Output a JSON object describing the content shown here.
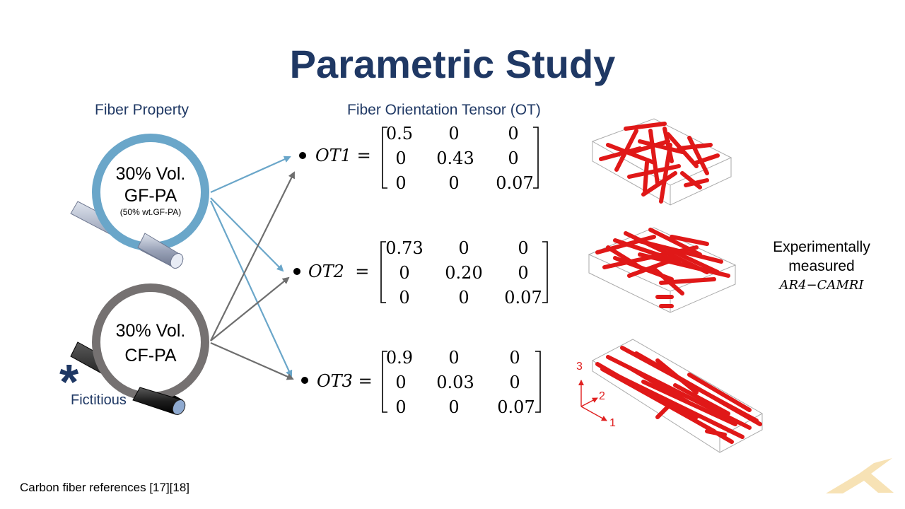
{
  "title": "Parametric Study",
  "fiber_header": "Fiber Property",
  "ot_header": "Fiber Orientation Tensor (OT)",
  "materials": [
    {
      "vol": "30% Vol.",
      "name": "GF-PA",
      "note": "(50% wt.GF-PA)"
    },
    {
      "vol": "30% Vol.",
      "name": "CF-PA",
      "note": ""
    }
  ],
  "fictitious": "Fictitious",
  "tensors": [
    {
      "label": "OT1",
      "rows": [
        [
          "0.5",
          "0",
          "0"
        ],
        [
          "0",
          "0.43",
          "0"
        ],
        [
          "0",
          "0",
          "0.07"
        ]
      ]
    },
    {
      "label": "OT2",
      "rows": [
        [
          "0.73",
          "0",
          "0"
        ],
        [
          "0",
          "0.20",
          "0"
        ],
        [
          "0",
          "0",
          "0.07"
        ]
      ]
    },
    {
      "label": "OT3",
      "rows": [
        [
          "0.9",
          "0",
          "0"
        ],
        [
          "0",
          "0.03",
          "0"
        ],
        [
          "0",
          "0",
          "0.07"
        ]
      ]
    }
  ],
  "experimental": {
    "line1": "Experimentally",
    "line2": "measured",
    "model": "AR4−CAMRI"
  },
  "axes": {
    "x": "1",
    "y": "2",
    "z": "3"
  },
  "references": "Carbon fiber references [17][18]",
  "colors": {
    "title": "#1f3864",
    "gf_ring": "#6aa6c9",
    "cf_ring": "#757171",
    "fiber": "#e01818",
    "gf_arrow": "#6aa6c9",
    "cf_arrow": "#6e6e6e"
  }
}
